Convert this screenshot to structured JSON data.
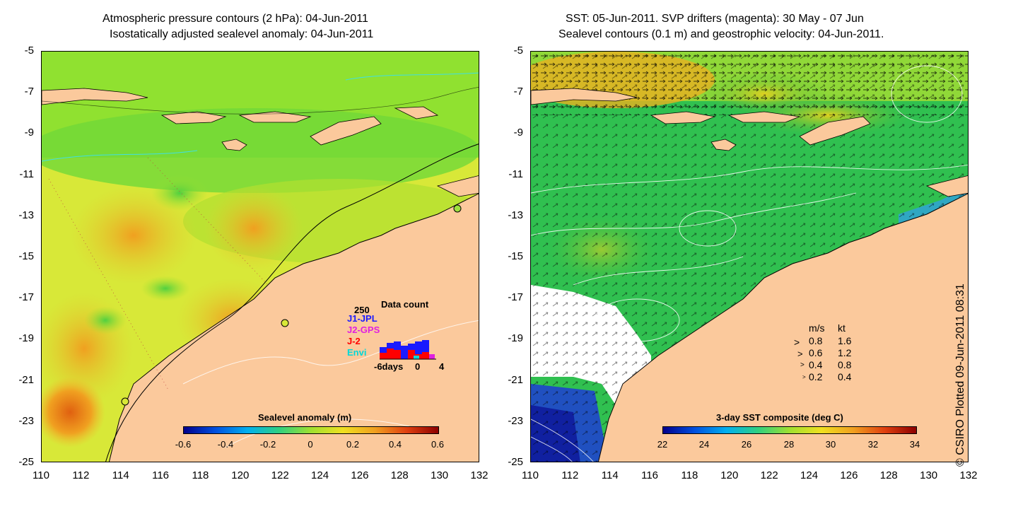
{
  "left_panel": {
    "title_line1": "Atmospheric pressure contours (2 hPa): 04-Jun-2011",
    "title_line2": "Isostatically adjusted sealevel anomaly: 04-Jun-2011",
    "colorbar": {
      "title": "Sealevel anomaly (m)",
      "labels": [
        "-0.6",
        "-0.4",
        "-0.2",
        "0",
        "0.2",
        "0.4",
        "0.6"
      ]
    },
    "inset": {
      "max_label": "250",
      "title": "Data count",
      "legend": [
        {
          "label": "J1-JPL",
          "color": "#1a1aff"
        },
        {
          "label": "J2-GPS",
          "color": "#e020e0"
        },
        {
          "label": "J-2",
          "color": "#ff0000"
        },
        {
          "label": "Envi",
          "color": "#00d8d8"
        }
      ],
      "x_labels": [
        "-6days",
        "0",
        "4"
      ]
    }
  },
  "right_panel": {
    "title_line1": "SST: 05-Jun-2011. SVP drifters (magenta): 30 May - 07 Jun",
    "title_line2": "Sealevel contours (0.1 m) and geostrophic velocity: 04-Jun-2011.",
    "colorbar": {
      "title": "3-day SST composite (deg C)",
      "labels": [
        "22",
        "24",
        "26",
        "28",
        "30",
        "32",
        "34"
      ]
    },
    "speed_legend": {
      "header_ms": "m/s",
      "header_kt": "kt",
      "rows": [
        {
          "ms": "0.8",
          "kt": "1.6"
        },
        {
          "ms": "0.6",
          "kt": "1.2"
        },
        {
          "ms": "0.4",
          "kt": "0.8"
        },
        {
          "ms": "0.2",
          "kt": "0.4"
        }
      ]
    }
  },
  "axes": {
    "y_ticks": [
      "-5",
      "-7",
      "-9",
      "-11",
      "-13",
      "-15",
      "-17",
      "-19",
      "-21",
      "-23",
      "-25"
    ],
    "x_ticks": [
      "110",
      "112",
      "114",
      "116",
      "118",
      "120",
      "122",
      "124",
      "126",
      "128",
      "130",
      "132"
    ]
  },
  "credit": "© CSIRO Plotted 09-Jun-2011 08:31",
  "colors": {
    "land": "#fbc99c",
    "sla_low": "#00008c",
    "sla_high": "#8c0000",
    "sst_low": "#00008c",
    "sst_high": "#8c0000"
  }
}
